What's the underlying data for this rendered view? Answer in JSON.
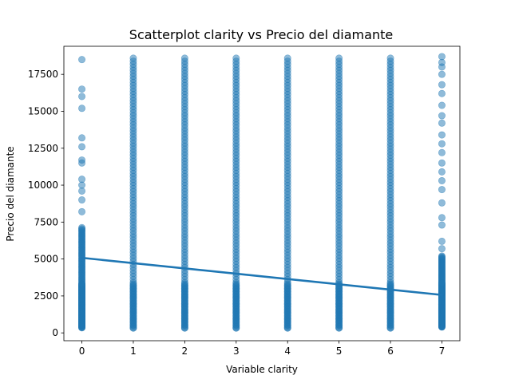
{
  "chart_data": {
    "type": "scatter",
    "title": "Scatterplot clarity vs Precio del diamante",
    "xlabel": "Variable clarity",
    "ylabel": "Precio del diamante",
    "xlim": [
      -0.35,
      7.35
    ],
    "ylim": [
      -530,
      19400
    ],
    "xticks": [
      0,
      1,
      2,
      3,
      4,
      5,
      6,
      7
    ],
    "yticks": [
      0,
      2500,
      5000,
      7500,
      10000,
      12500,
      15000,
      17500
    ],
    "grid": false,
    "point_color": "#1f77b4",
    "line_color": "#1f77b4",
    "series": [
      {
        "columns": [
          {
            "x": 0,
            "min": 350,
            "max": 7200,
            "outliers": [
              8200,
              9000,
              9600,
              10000,
              10400,
              11500,
              11700,
              12600,
              13200,
              15200,
              16000,
              16500,
              18500
            ]
          },
          {
            "x": 1,
            "min": 330,
            "max": 18800,
            "outliers": []
          },
          {
            "x": 2,
            "min": 330,
            "max": 18800,
            "outliers": []
          },
          {
            "x": 3,
            "min": 330,
            "max": 18800,
            "outliers": []
          },
          {
            "x": 4,
            "min": 330,
            "max": 18800,
            "outliers": []
          },
          {
            "x": 5,
            "min": 330,
            "max": 18800,
            "outliers": []
          },
          {
            "x": 6,
            "min": 330,
            "max": 18800,
            "outliers": []
          },
          {
            "x": 7,
            "min": 400,
            "max": 5200,
            "outliers": [
              5700,
              6200,
              7300,
              7800,
              8800,
              9700,
              10300,
              10900,
              11500,
              12200,
              12800,
              13400,
              14200,
              14700,
              15400,
              16200,
              16800,
              17500,
              18000,
              18300,
              18700
            ]
          }
        ]
      }
    ],
    "regression_line": {
      "x": [
        0,
        7
      ],
      "y": [
        5080,
        2570
      ]
    }
  }
}
